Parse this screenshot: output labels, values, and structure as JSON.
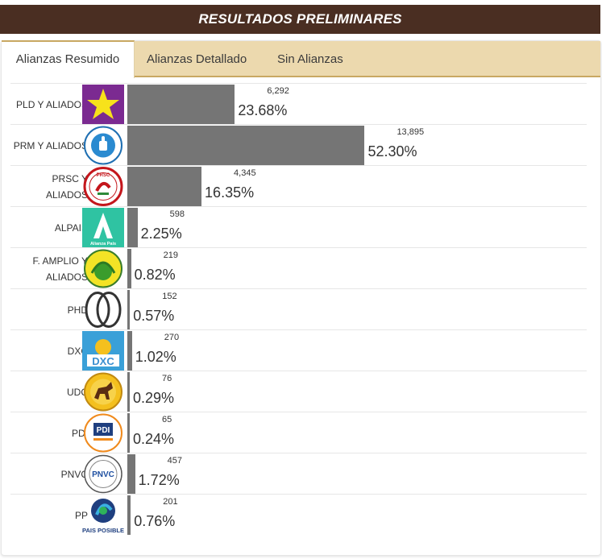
{
  "header": {
    "title": "RESULTADOS PRELIMINARES"
  },
  "tabs": [
    "Alianzas Resumido",
    "Alianzas Detallado",
    "Sin Alianzas"
  ],
  "colors": {
    "header_bg": "#4a2e22",
    "tab_bg": "#ecd9ae",
    "bar": "#757575"
  },
  "chart_data": {
    "type": "bar",
    "orientation": "horizontal",
    "title": "RESULTADOS PRELIMINARES",
    "categories": [
      "PLD Y ALIADOS",
      "PRM Y ALIADOS",
      "PRSC Y ALIADOS",
      "ALPAIS",
      "F. AMPLIO Y ALIADOS",
      "PHD",
      "DXC",
      "UDC",
      "PDI",
      "PNVC",
      "PP"
    ],
    "values": [
      6292,
      13895,
      4345,
      598,
      219,
      152,
      270,
      76,
      65,
      457,
      201
    ],
    "vote_labels": [
      "6,292",
      "13,895",
      "4,345",
      "598",
      "219",
      "152",
      "270",
      "76",
      "65",
      "457",
      "201"
    ],
    "percent_labels": [
      "23.68%",
      "52.30%",
      "16.35%",
      "2.25%",
      "0.82%",
      "0.57%",
      "1.02%",
      "0.29%",
      "0.24%",
      "1.72%",
      "0.76%"
    ],
    "percents": [
      23.68,
      52.3,
      16.35,
      2.25,
      0.82,
      0.57,
      1.02,
      0.29,
      0.24,
      1.72,
      0.76
    ],
    "logos": [
      "pld-star-icon",
      "prm-thumb-icon",
      "prsc-logo-icon",
      "alpais-a-icon",
      "frente-amplio-logo-icon",
      "phd-rings-icon",
      "dxc-sun-icon",
      "udc-horse-icon",
      "pdi-logo-icon",
      "pnvc-logo-icon",
      "pais-posible-logo-icon"
    ],
    "logo_texts": [
      "",
      "",
      "PRSC",
      "Alianza País",
      "",
      "",
      "DXC",
      "",
      "PDI",
      "PNVC",
      "PAIS POSIBLE"
    ]
  }
}
